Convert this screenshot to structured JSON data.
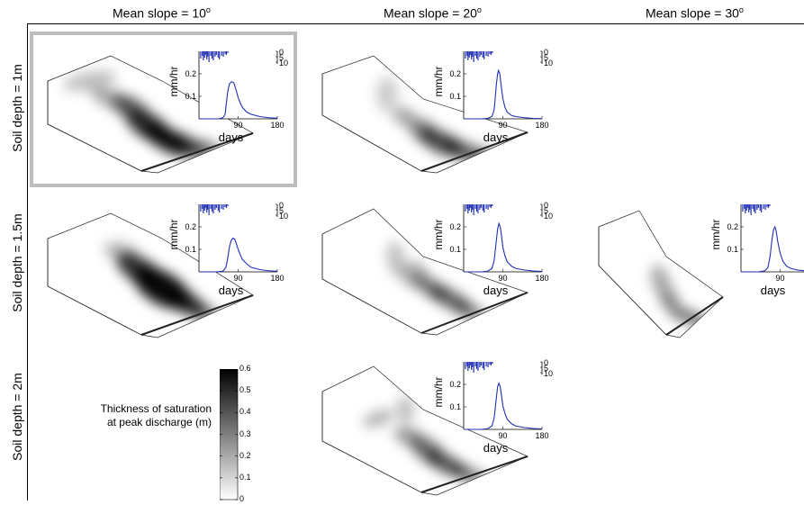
{
  "columns": [
    {
      "label": "Mean slope = 10",
      "sup": "o"
    },
    {
      "label": "Mean slope = 20",
      "sup": "o"
    },
    {
      "label": "Mean slope = 30",
      "sup": "o"
    }
  ],
  "rows": [
    {
      "label": "Soil depth = 1m"
    },
    {
      "label": "Soil depth = 1.5m"
    },
    {
      "label": "Soil depth = 2m"
    }
  ],
  "highlight_color": "#bdbdbd",
  "line_color": "#1f2fb5",
  "rain_color": "#1f2fb5",
  "colorbar": {
    "label_line1": "Thickness of saturation",
    "label_line2": "at peak discharge (m)",
    "range": [
      0,
      0.6
    ],
    "ticks": [
      "0.6",
      "0.5",
      "0.4",
      "0.3",
      "0.2",
      "0.1",
      "0"
    ],
    "colormap": "gray-reversed"
  },
  "chart_data": [
    {
      "type": "line",
      "row": "Soil depth = 1m",
      "column": "Mean slope = 10",
      "ylabel": "mm/hr",
      "xlabel": "days",
      "xlim": [
        0,
        180
      ],
      "ylim": [
        0,
        0.3
      ],
      "xticks": [
        "90",
        "180"
      ],
      "yticks": [
        "0.1",
        "0.2"
      ],
      "rain_axis_ticks": [
        "0",
        "5",
        "10"
      ],
      "x": [
        0,
        30,
        45,
        55,
        60,
        63,
        66,
        70,
        75,
        80,
        85,
        90,
        95,
        100,
        110,
        120,
        140,
        160,
        180
      ],
      "y": [
        0,
        0,
        0,
        0.005,
        0.02,
        0.07,
        0.12,
        0.155,
        0.165,
        0.16,
        0.13,
        0.095,
        0.07,
        0.05,
        0.03,
        0.02,
        0.01,
        0.005,
        0.003
      ]
    },
    {
      "type": "line",
      "row": "Soil depth = 1m",
      "column": "Mean slope = 20",
      "ylabel": "mm/hr",
      "xlabel": "days",
      "xlim": [
        0,
        180
      ],
      "ylim": [
        0,
        0.3
      ],
      "xticks": [
        "90",
        "180"
      ],
      "yticks": [
        "0.1",
        "0.2"
      ],
      "rain_axis_ticks": [
        "0",
        "5",
        "10"
      ],
      "x": [
        0,
        40,
        55,
        65,
        70,
        72,
        75,
        78,
        80,
        83,
        86,
        90,
        95,
        100,
        110,
        120,
        140,
        160,
        180
      ],
      "y": [
        0,
        0,
        0.002,
        0.01,
        0.04,
        0.08,
        0.15,
        0.2,
        0.215,
        0.2,
        0.15,
        0.09,
        0.05,
        0.03,
        0.015,
        0.01,
        0.005,
        0.002,
        0.001
      ]
    },
    {
      "type": "line",
      "row": "Soil depth = 1.5m",
      "column": "Mean slope = 10",
      "ylabel": "mm/hr",
      "xlabel": "days",
      "xlim": [
        0,
        180
      ],
      "ylim": [
        0,
        0.3
      ],
      "xticks": [
        "90",
        "180"
      ],
      "yticks": [
        "0.1",
        "0.2"
      ],
      "rain_axis_ticks": [
        "0",
        "5",
        "10"
      ],
      "x": [
        0,
        40,
        55,
        62,
        66,
        70,
        74,
        78,
        82,
        86,
        90,
        95,
        100,
        110,
        120,
        140,
        160,
        180
      ],
      "y": [
        0,
        0,
        0.003,
        0.02,
        0.06,
        0.11,
        0.14,
        0.15,
        0.145,
        0.125,
        0.1,
        0.075,
        0.055,
        0.035,
        0.02,
        0.01,
        0.005,
        0.003
      ]
    },
    {
      "type": "line",
      "row": "Soil depth = 1.5m",
      "column": "Mean slope = 20",
      "ylabel": "mm/hr",
      "xlabel": "days",
      "xlim": [
        0,
        180
      ],
      "ylim": [
        0,
        0.3
      ],
      "xticks": [
        "90",
        "180"
      ],
      "yticks": [
        "0.1",
        "0.2"
      ],
      "rain_axis_ticks": [
        "0",
        "5",
        "10"
      ],
      "x": [
        0,
        40,
        55,
        65,
        70,
        74,
        78,
        81,
        84,
        87,
        90,
        95,
        100,
        110,
        120,
        140,
        160,
        180
      ],
      "y": [
        0,
        0,
        0.003,
        0.015,
        0.05,
        0.12,
        0.19,
        0.215,
        0.2,
        0.16,
        0.11,
        0.07,
        0.045,
        0.025,
        0.015,
        0.008,
        0.004,
        0.002
      ]
    },
    {
      "type": "line",
      "row": "Soil depth = 1.5m",
      "column": "Mean slope = 30",
      "ylabel": "mm/hr",
      "xlabel": "days",
      "xlim": [
        0,
        180
      ],
      "ylim": [
        0,
        0.3
      ],
      "xticks": [
        "90",
        "180"
      ],
      "yticks": [
        "0.1",
        "0.2"
      ],
      "rain_axis_ticks": [
        "0",
        "5",
        "10"
      ],
      "x": [
        0,
        40,
        55,
        62,
        67,
        71,
        75,
        78,
        81,
        84,
        88,
        92,
        97,
        105,
        115,
        130,
        150,
        180
      ],
      "y": [
        0,
        0,
        0.005,
        0.02,
        0.07,
        0.14,
        0.19,
        0.2,
        0.18,
        0.14,
        0.1,
        0.07,
        0.045,
        0.025,
        0.015,
        0.008,
        0.004,
        0.002
      ]
    },
    {
      "type": "line",
      "row": "Soil depth = 2m",
      "column": "Mean slope = 20",
      "ylabel": "mm/hr",
      "xlabel": "days",
      "xlim": [
        0,
        180
      ],
      "ylim": [
        0,
        0.3
      ],
      "xticks": [
        "90",
        "180"
      ],
      "yticks": [
        "0.1",
        "0.2"
      ],
      "rain_axis_ticks": [
        "0",
        "5",
        "10"
      ],
      "x": [
        0,
        40,
        55,
        65,
        70,
        74,
        78,
        81,
        84,
        87,
        90,
        95,
        100,
        110,
        120,
        140,
        160,
        180
      ],
      "y": [
        0,
        0,
        0.003,
        0.015,
        0.05,
        0.12,
        0.19,
        0.205,
        0.19,
        0.15,
        0.105,
        0.07,
        0.045,
        0.025,
        0.015,
        0.008,
        0.004,
        0.002
      ]
    }
  ]
}
